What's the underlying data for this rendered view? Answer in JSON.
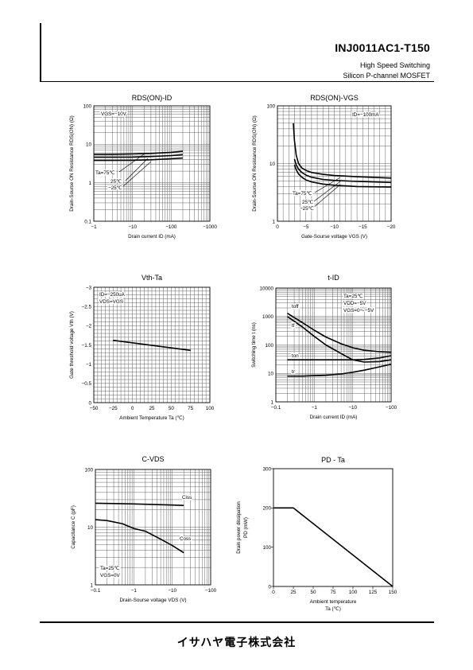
{
  "header": {
    "part_number": "INJ0011AC1-T150",
    "subtitle_1": "High Speed Switching",
    "subtitle_2": "Silicon  P-channel  MOSFET"
  },
  "footer": {
    "company": "イサハヤ電子株式会社"
  },
  "chart_data": [
    {
      "id": "rds-id",
      "type": "line",
      "title": "RDS(ON)-ID",
      "xlabel": "Drain current ID (mA)",
      "ylabel": "Drain-Sourse ON Resistance RDS(ON) (Ω)",
      "xscale": "log",
      "yscale": "log",
      "xlim": [
        1,
        1000
      ],
      "ylim": [
        0.1,
        100
      ],
      "xticks": [
        1,
        10,
        100,
        1000
      ],
      "xtick_labels": [
        "−1",
        "−10",
        "−100",
        "−1000"
      ],
      "yticks": [
        0.1,
        1,
        10,
        100
      ],
      "ytick_labels": [
        "0.1",
        "1",
        "10",
        "100"
      ],
      "grid": true,
      "annotations": [
        {
          "text": "VGS=−10V"
        }
      ],
      "series_labels": [
        "Ta=75℃",
        "25℃",
        "−25℃"
      ],
      "series": [
        {
          "x": [
            1,
            3,
            10,
            30,
            100,
            200
          ],
          "y": [
            5.5,
            5.5,
            5.6,
            5.8,
            6.2,
            6.6
          ]
        },
        {
          "x": [
            1,
            3,
            10,
            30,
            100,
            200
          ],
          "y": [
            4.6,
            4.6,
            4.65,
            4.8,
            5.1,
            5.4
          ]
        },
        {
          "x": [
            1,
            3,
            10,
            30,
            100,
            200
          ],
          "y": [
            3.8,
            3.8,
            3.85,
            3.95,
            4.2,
            4.4
          ]
        }
      ]
    },
    {
      "id": "rds-vgs",
      "type": "line",
      "title": "RDS(ON)-VGS",
      "xlabel": "Gate-Sourse voltage VGS (V)",
      "ylabel": "Drain-Sourse ON Resistance RDS(ON) (Ω)",
      "xscale": "linear",
      "yscale": "log",
      "xlim": [
        0,
        20
      ],
      "ylim": [
        1,
        100
      ],
      "xticks": [
        0,
        5,
        10,
        15,
        20
      ],
      "xtick_labels": [
        "0",
        "−5",
        "−10",
        "−15",
        "−20"
      ],
      "yticks": [
        1,
        10,
        100
      ],
      "ytick_labels": [
        "1",
        "10",
        "100"
      ],
      "grid": true,
      "annotations": [
        {
          "text": "ID=−100mA"
        }
      ],
      "series_labels": [
        "Ta=75℃",
        "25℃",
        "−25℃"
      ],
      "series": [
        {
          "x": [
            2.8,
            3,
            3.3,
            3.7,
            4.3,
            5,
            6,
            8,
            10,
            14,
            20
          ],
          "y": [
            50,
            25,
            14,
            10,
            8.4,
            7.6,
            7.0,
            6.5,
            6.2,
            5.9,
            5.6
          ]
        },
        {
          "x": [
            3,
            3.3,
            3.7,
            4.3,
            5,
            6,
            8,
            10,
            14,
            20
          ],
          "y": [
            12,
            9.5,
            8.0,
            7.0,
            6.3,
            5.8,
            5.3,
            5.1,
            4.9,
            4.7
          ]
        },
        {
          "x": [
            3,
            3.3,
            3.7,
            4.3,
            5,
            6,
            8,
            10,
            14,
            20
          ],
          "y": [
            9.5,
            7.8,
            6.6,
            5.8,
            5.2,
            4.8,
            4.4,
            4.2,
            4.0,
            3.9
          ]
        }
      ]
    },
    {
      "id": "vth-ta",
      "type": "line",
      "title": "Vth-Ta",
      "xlabel": "Ambient Temperature Ta (℃)",
      "ylabel": "Gate threshold voltage Vth (V)",
      "xscale": "linear",
      "yscale": "linear",
      "xlim": [
        -50,
        100
      ],
      "ylim": [
        0,
        3
      ],
      "xticks": [
        -50,
        -25,
        0,
        25,
        50,
        75,
        100
      ],
      "xtick_labels": [
        "−50",
        "−25",
        "0",
        "25",
        "50",
        "75",
        "100"
      ],
      "yticks": [
        0,
        0.5,
        1,
        1.5,
        2,
        2.5,
        3
      ],
      "ytick_labels": [
        "0",
        "−0.5",
        "−1",
        "−1.5",
        "−2",
        "−2.5",
        "−3"
      ],
      "grid": true,
      "annotations": [
        {
          "text": "ID=−250uA"
        },
        {
          "text": "VDS=VGS"
        }
      ],
      "series_labels": [],
      "series": [
        {
          "x": [
            -25,
            75
          ],
          "y": [
            1.62,
            1.36
          ]
        }
      ]
    },
    {
      "id": "t-id",
      "type": "line",
      "title": "t-ID",
      "xlabel": "Drain current ID (mA)",
      "ylabel": "Switching time t (ns)",
      "xscale": "log",
      "yscale": "log",
      "xlim": [
        0.1,
        100
      ],
      "ylim": [
        1,
        10000
      ],
      "xticks": [
        0.1,
        1,
        10,
        100
      ],
      "xtick_labels": [
        "−0.1",
        "−1",
        "−10",
        "−100"
      ],
      "yticks": [
        1,
        10,
        100,
        1000,
        10000
      ],
      "ytick_labels": [
        "1",
        "10",
        "100",
        "1000",
        "10000"
      ],
      "grid": true,
      "annotations": [
        {
          "text": "Ta=25℃"
        },
        {
          "text": "VDD=−5V"
        },
        {
          "text": "VGS=0〜−5V"
        }
      ],
      "series_labels": [
        "toff",
        "tf",
        "ton",
        "tr"
      ],
      "series": [
        {
          "x": [
            0.2,
            0.5,
            1,
            2,
            5,
            10,
            20,
            50,
            100
          ],
          "y": [
            1300,
            600,
            330,
            190,
            110,
            80,
            65,
            58,
            55
          ]
        },
        {
          "x": [
            0.2,
            0.5,
            1,
            2,
            5,
            10,
            20,
            50,
            100
          ],
          "y": [
            1000,
            420,
            200,
            100,
            50,
            30,
            25,
            26,
            30
          ]
        },
        {
          "x": [
            0.2,
            0.5,
            1,
            2,
            5,
            10,
            20,
            50,
            100
          ],
          "y": [
            30,
            30,
            30,
            30,
            30,
            30,
            31,
            35,
            42
          ]
        },
        {
          "x": [
            0.2,
            0.5,
            1,
            2,
            5,
            10,
            20,
            50,
            100
          ],
          "y": [
            8,
            8,
            8.3,
            8.7,
            9.5,
            11,
            13,
            17,
            21
          ]
        }
      ]
    },
    {
      "id": "c-vds",
      "type": "line",
      "title": "C-VDS",
      "xlabel": "Drain-Sourse voltage VDS (V)",
      "ylabel": "Capacitance C (pF)",
      "xscale": "log",
      "yscale": "log",
      "xlim": [
        0.1,
        100
      ],
      "ylim": [
        1,
        100
      ],
      "xticks": [
        0.1,
        1,
        10,
        100
      ],
      "xtick_labels": [
        "−0.1",
        "−1",
        "−10",
        "−100"
      ],
      "yticks": [
        1,
        10,
        100
      ],
      "ytick_labels": [
        "1",
        "10",
        "100"
      ],
      "grid": true,
      "annotations": [
        {
          "text": "Ta=25℃"
        },
        {
          "text": "VGS=0V"
        }
      ],
      "series_labels": [
        "Ciss",
        "Coss"
      ],
      "series": [
        {
          "x": [
            0.1,
            0.3,
            1,
            3,
            10,
            20
          ],
          "y": [
            26,
            25.7,
            25.3,
            24.8,
            24.2,
            23.8
          ]
        },
        {
          "x": [
            0.1,
            0.2,
            0.5,
            1,
            2,
            5,
            10,
            20
          ],
          "y": [
            13.5,
            13,
            11.5,
            9.5,
            8.5,
            6.2,
            4.8,
            3.6
          ]
        }
      ]
    },
    {
      "id": "pd-ta",
      "type": "line",
      "title": "PD - Ta",
      "xlabel": "Ambient temperature Ta (℃)",
      "ylabel": "Drain power dissipation PD (mW)",
      "xscale": "linear",
      "yscale": "linear",
      "xlim": [
        0,
        150
      ],
      "ylim": [
        0,
        300
      ],
      "xticks": [
        0,
        25,
        50,
        75,
        100,
        125,
        150
      ],
      "xtick_labels": [
        "0",
        "25",
        "50",
        "75",
        "100",
        "125",
        "150"
      ],
      "yticks": [
        0,
        100,
        200,
        300
      ],
      "ytick_labels": [
        "0",
        "100",
        "200",
        "300"
      ],
      "grid": false,
      "annotations": [],
      "series_labels": [],
      "series": [
        {
          "x": [
            0,
            25,
            150
          ],
          "y": [
            200,
            200,
            0
          ]
        }
      ]
    }
  ]
}
